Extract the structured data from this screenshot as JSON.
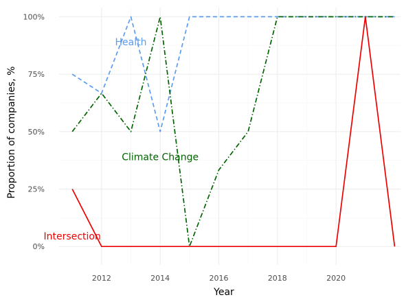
{
  "chart_data": {
    "type": "line",
    "xlabel": "Year",
    "ylabel": "Proportion of companies, %",
    "xlim": [
      2010.55,
      2022.2
    ],
    "ylim": [
      -0.08,
      1.04
    ],
    "x_ticks": [
      2012,
      2014,
      2016,
      2018,
      2020
    ],
    "x_tick_labels": [
      "2012",
      "2014",
      "2016",
      "2018",
      "2020"
    ],
    "y_ticks": [
      0,
      0.25,
      0.5,
      0.75,
      1
    ],
    "y_tick_labels": [
      "0%",
      "25%",
      "50%",
      "75%",
      "100%"
    ],
    "grid": true,
    "legend": "none",
    "x": [
      2011,
      2012,
      2013,
      2014,
      2015,
      2016,
      2017,
      2018,
      2019,
      2020,
      2021,
      2022
    ],
    "series": [
      {
        "name": "Health",
        "color": "#5b9cf0",
        "dash": "dashed",
        "label_pos": [
          2013.0,
          0.89
        ],
        "values": [
          0.75,
          0.667,
          1.0,
          0.5,
          1.0,
          1.0,
          1.0,
          1.0,
          1.0,
          1.0,
          1.0,
          1.0
        ]
      },
      {
        "name": "Climate Change",
        "color": "#006400",
        "dash": "dotdash",
        "label_pos": [
          2014.0,
          0.39
        ],
        "values": [
          0.5,
          0.667,
          0.5,
          1.0,
          0.0,
          0.333,
          0.5,
          1.0,
          1.0,
          1.0,
          1.0,
          1.0
        ]
      },
      {
        "name": "Intersection",
        "color": "#ee0000",
        "dash": "solid",
        "label_pos": [
          2011.0,
          0.045
        ],
        "values": [
          0.25,
          0.0,
          0.0,
          0.0,
          0.0,
          0.0,
          0.0,
          0.0,
          0.0,
          0.0,
          1.0,
          0.0
        ]
      }
    ]
  }
}
